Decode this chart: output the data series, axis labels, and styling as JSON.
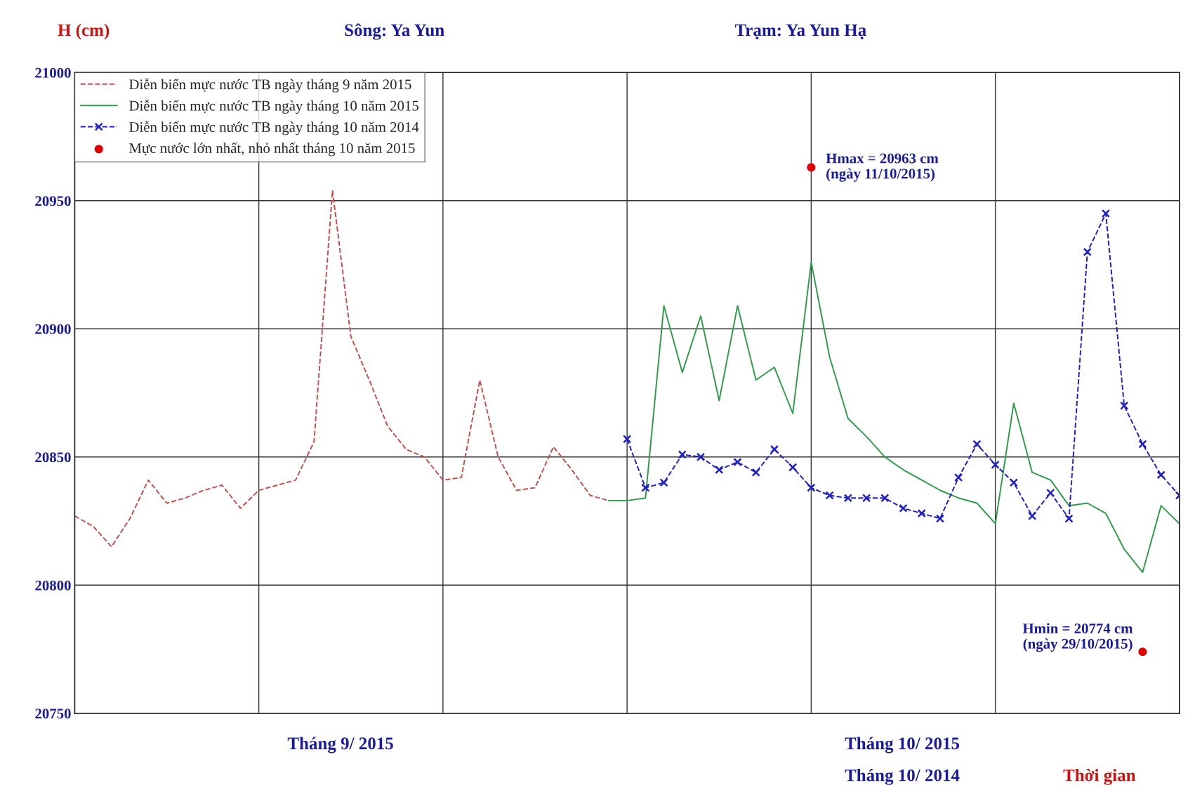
{
  "chart_data": {
    "type": "line",
    "title": "Sông: Ya Yun",
    "subtitle": "Trạm: Ya Yun Hạ",
    "ylabel": "H (cm)",
    "xlabel": "Thời gian",
    "categories": [
      null,
      null,
      null,
      null,
      null,
      null,
      null,
      null,
      null,
      null,
      null,
      null,
      null,
      null,
      null,
      null,
      null,
      null,
      null,
      null,
      null,
      null,
      null,
      null,
      null,
      null,
      null,
      null,
      null,
      null,
      null,
      null,
      null,
      null,
      null,
      null,
      null,
      null,
      null,
      null,
      null,
      null,
      null,
      null,
      null,
      null,
      null,
      null,
      null,
      null,
      null,
      null,
      null,
      null,
      null,
      null,
      null,
      null,
      null,
      null,
      null
    ],
    "ylim": [
      20750,
      21000
    ],
    "yticks": [
      20750,
      20800,
      20850,
      20900,
      20950,
      21000
    ],
    "grid": true,
    "legend": "top left",
    "series": [
      {
        "name": "Diễn biến mực nước TB ngày tháng 9 năm 2015",
        "color": "#c0504d",
        "line_style": "dashed",
        "marker": "none",
        "values": [
          20827,
          20823,
          20815,
          20826,
          20841,
          20832,
          20834,
          20837,
          20839,
          20830,
          20837,
          20839,
          20841,
          20856,
          20954,
          20897,
          20880,
          20862,
          20853,
          20850,
          20841,
          20842,
          20880,
          20850,
          20837,
          20838,
          20854,
          20845,
          20835,
          20833,
          null,
          null,
          null,
          null,
          null,
          null,
          null,
          null,
          null,
          null,
          null,
          null,
          null,
          null,
          null,
          null,
          null,
          null,
          null,
          null,
          null,
          null,
          null,
          null,
          null,
          null,
          null,
          null,
          null,
          null,
          null
        ]
      },
      {
        "name": "Diễn biến mực nước TB ngày tháng 10 năm 2015",
        "color": "#2e9a4a",
        "line_style": "solid",
        "marker": "none",
        "values": [
          null,
          null,
          null,
          null,
          null,
          null,
          null,
          null,
          null,
          null,
          null,
          null,
          null,
          null,
          null,
          null,
          null,
          null,
          null,
          null,
          null,
          null,
          null,
          null,
          null,
          null,
          null,
          null,
          null,
          20833,
          20833,
          20834,
          20909,
          20883,
          20905,
          20872,
          20909,
          20880,
          20885,
          20867,
          20926,
          20889,
          20865,
          20858,
          20850,
          20845,
          20841,
          20837,
          20834,
          20832,
          20824,
          20871,
          20844,
          20841,
          20831,
          20832,
          20828,
          20814,
          20805,
          20831,
          20824
        ]
      },
      {
        "name": "Diễn biến mực nước TB ngày tháng 10 năm 2014",
        "color": "#1f1fc8",
        "line_style": "dashed",
        "marker": "cross",
        "values": [
          null,
          null,
          null,
          null,
          null,
          null,
          null,
          null,
          null,
          null,
          null,
          null,
          null,
          null,
          null,
          null,
          null,
          null,
          null,
          null,
          null,
          null,
          null,
          null,
          null,
          null,
          null,
          null,
          null,
          null,
          20857,
          20838,
          20840,
          20851,
          20850,
          20845,
          20848,
          20844,
          20853,
          20846,
          20838,
          20835,
          20834,
          20834,
          20834,
          20830,
          20828,
          20826,
          20842,
          20855,
          20847,
          20840,
          20827,
          20836,
          20826,
          20930,
          20945,
          20870,
          20855,
          20843,
          20835
        ]
      },
      {
        "name": "Mực nước lớn nhất, nhỏ nhất tháng 10 năm 2015",
        "type": "scatter",
        "color": "#e00000",
        "marker": "circle",
        "values": [
          null,
          null,
          null,
          null,
          null,
          null,
          null,
          null,
          null,
          null,
          null,
          null,
          null,
          null,
          null,
          null,
          null,
          null,
          null,
          null,
          null,
          null,
          null,
          null,
          null,
          null,
          null,
          null,
          null,
          null,
          null,
          null,
          null,
          null,
          null,
          null,
          null,
          null,
          null,
          null,
          20963,
          null,
          null,
          null,
          null,
          null,
          null,
          null,
          null,
          null,
          null,
          null,
          null,
          null,
          null,
          null,
          null,
          null,
          20774,
          null,
          null
        ]
      }
    ],
    "annotations": [
      "Hmax = 20963 cm\n(ngày 11/10/2015)",
      "Hmin = 20774 cm\n(ngày 29/10/2015)",
      "Tháng 9/ 2015",
      "Tháng 10/ 2015",
      "Tháng 10/ 2014"
    ]
  }
}
